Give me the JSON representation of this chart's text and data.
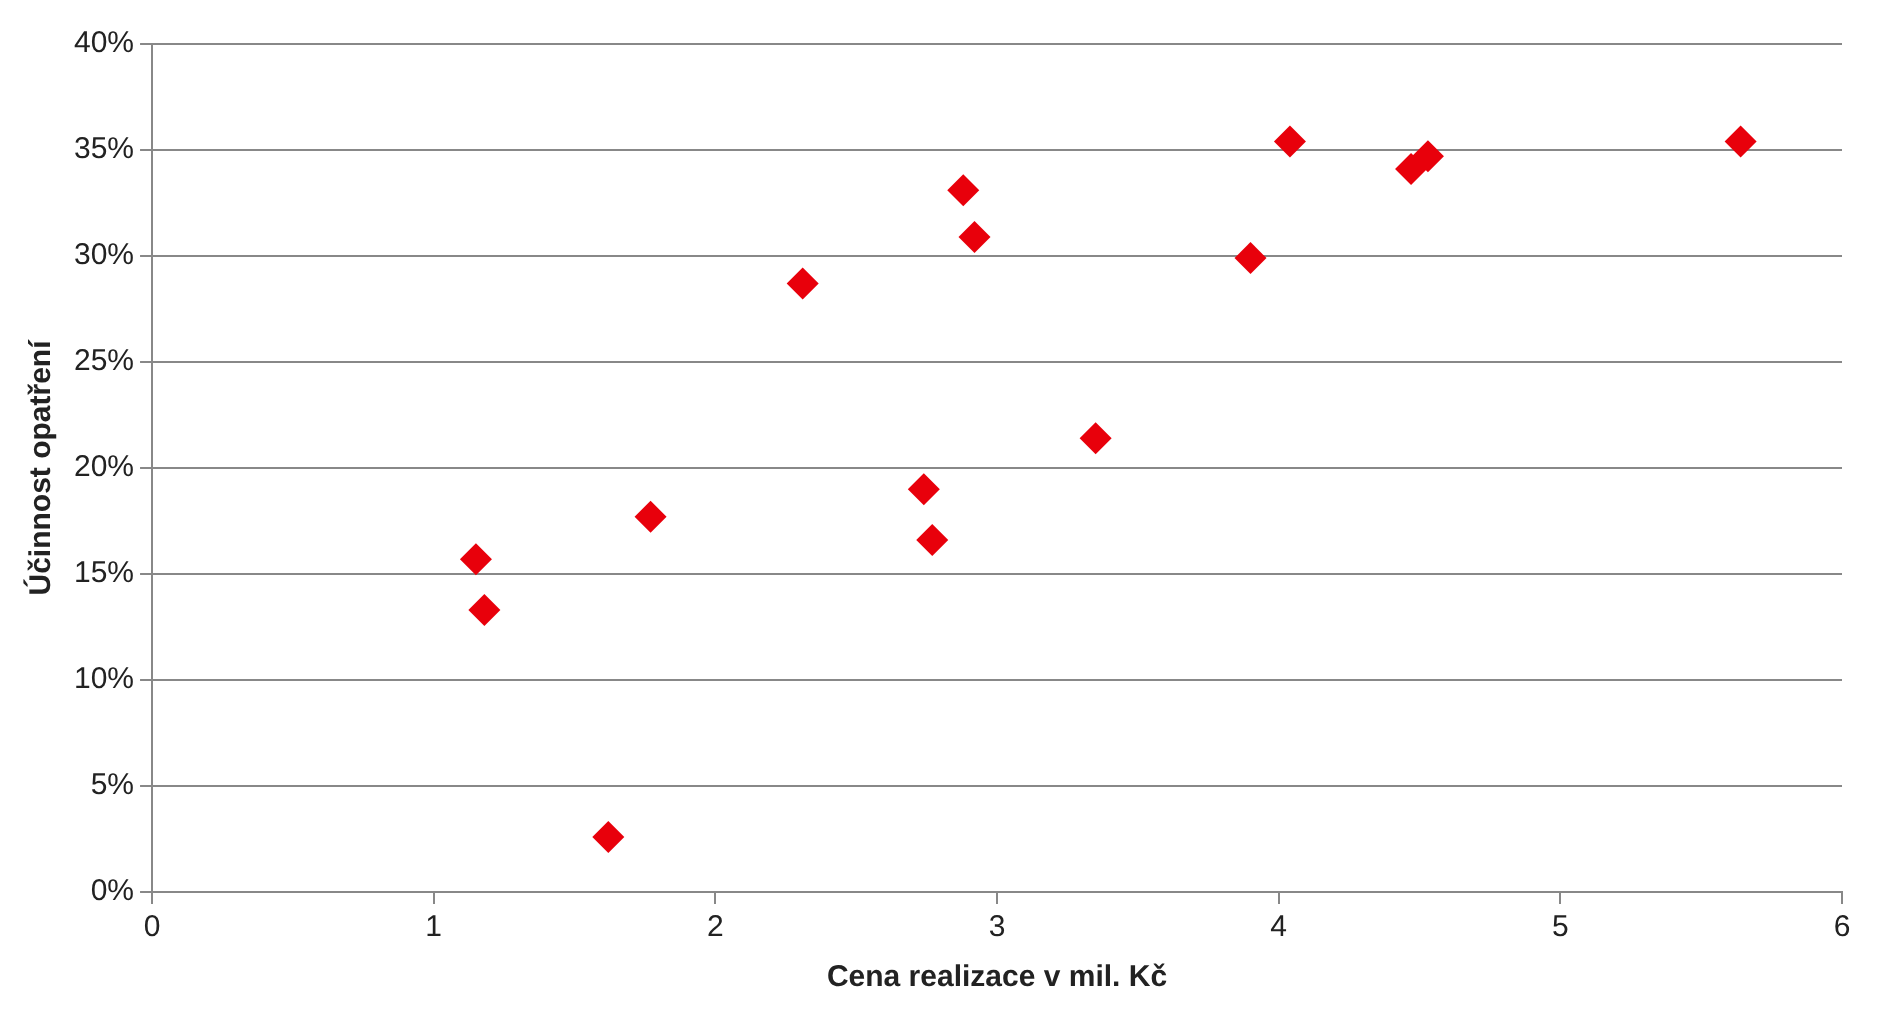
{
  "chart_data": {
    "type": "scatter",
    "xlabel": "Cena realizace v mil. Kč",
    "ylabel": "Účinnost opatření",
    "x": [
      1.15,
      1.18,
      1.62,
      1.77,
      2.31,
      2.74,
      2.77,
      2.88,
      2.92,
      3.35,
      3.9,
      4.04,
      4.47,
      4.53,
      5.64
    ],
    "series": [
      {
        "color": "#e8000b",
        "values": [
          15.7,
          13.3,
          2.6,
          17.7,
          28.7,
          19.0,
          16.6,
          33.1,
          30.9,
          21.4,
          29.9,
          35.4,
          34.1,
          34.7,
          35.4
        ]
      }
    ],
    "xlim": [
      0,
      6
    ],
    "xticks": [
      0,
      1,
      2,
      3,
      4,
      5,
      6
    ],
    "ylim": [
      0,
      40
    ],
    "yticks": [
      {
        "value": 0,
        "label": "0%"
      },
      {
        "value": 5,
        "label": "5%"
      },
      {
        "value": 10,
        "label": "10%"
      },
      {
        "value": 15,
        "label": "15%"
      },
      {
        "value": 20,
        "label": "20%"
      },
      {
        "value": 25,
        "label": "25%"
      },
      {
        "value": 30,
        "label": "30%"
      },
      {
        "value": 35,
        "label": "35%"
      },
      {
        "value": 40,
        "label": "40%"
      }
    ],
    "grid": "y",
    "marker": "diamond",
    "legend": false
  }
}
